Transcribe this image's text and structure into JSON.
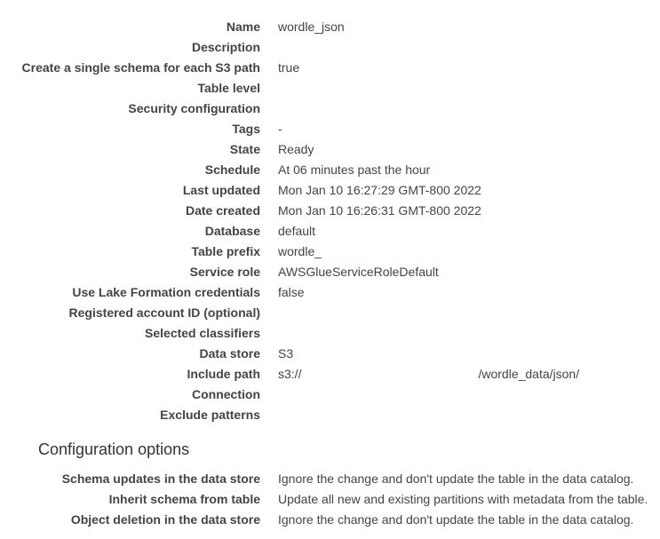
{
  "details": [
    {
      "label": "Name",
      "value": "wordle_json"
    },
    {
      "label": "Description",
      "value": ""
    },
    {
      "label": "Create a single schema for each S3 path",
      "value": "true"
    },
    {
      "label": "Table level",
      "value": ""
    },
    {
      "label": "Security configuration",
      "value": ""
    },
    {
      "label": "Tags",
      "value": "-"
    },
    {
      "label": "State",
      "value": "Ready"
    },
    {
      "label": "Schedule",
      "value": "At 06 minutes past the hour"
    },
    {
      "label": "Last updated",
      "value": "Mon Jan 10 16:27:29 GMT-800 2022"
    },
    {
      "label": "Date created",
      "value": "Mon Jan 10 16:26:31 GMT-800 2022"
    },
    {
      "label": "Database",
      "value": "default"
    },
    {
      "label": "Table prefix",
      "value": "wordle_"
    },
    {
      "label": "Service role",
      "value": "AWSGlueServiceRoleDefault"
    },
    {
      "label": "Use Lake Formation credentials",
      "value": "false"
    },
    {
      "label": "Registered account ID (optional)",
      "value": ""
    },
    {
      "label": "Selected classifiers",
      "value": ""
    },
    {
      "label": "Data store",
      "value": "S3"
    },
    {
      "label": "Include path",
      "value_prefix": "s3://",
      "value_suffix": "/wordle_data/json/"
    },
    {
      "label": "Connection",
      "value": ""
    },
    {
      "label": "Exclude patterns",
      "value": ""
    }
  ],
  "config": {
    "title": "Configuration options",
    "items": [
      {
        "label": "Schema updates in the data store",
        "value": "Ignore the change and don't update the table in the data catalog."
      },
      {
        "label": "Inherit schema from table",
        "value": "Update all new and existing partitions with metadata from the table."
      },
      {
        "label": "Object deletion in the data store",
        "value": "Ignore the change and don't update the table in the data catalog."
      }
    ]
  }
}
